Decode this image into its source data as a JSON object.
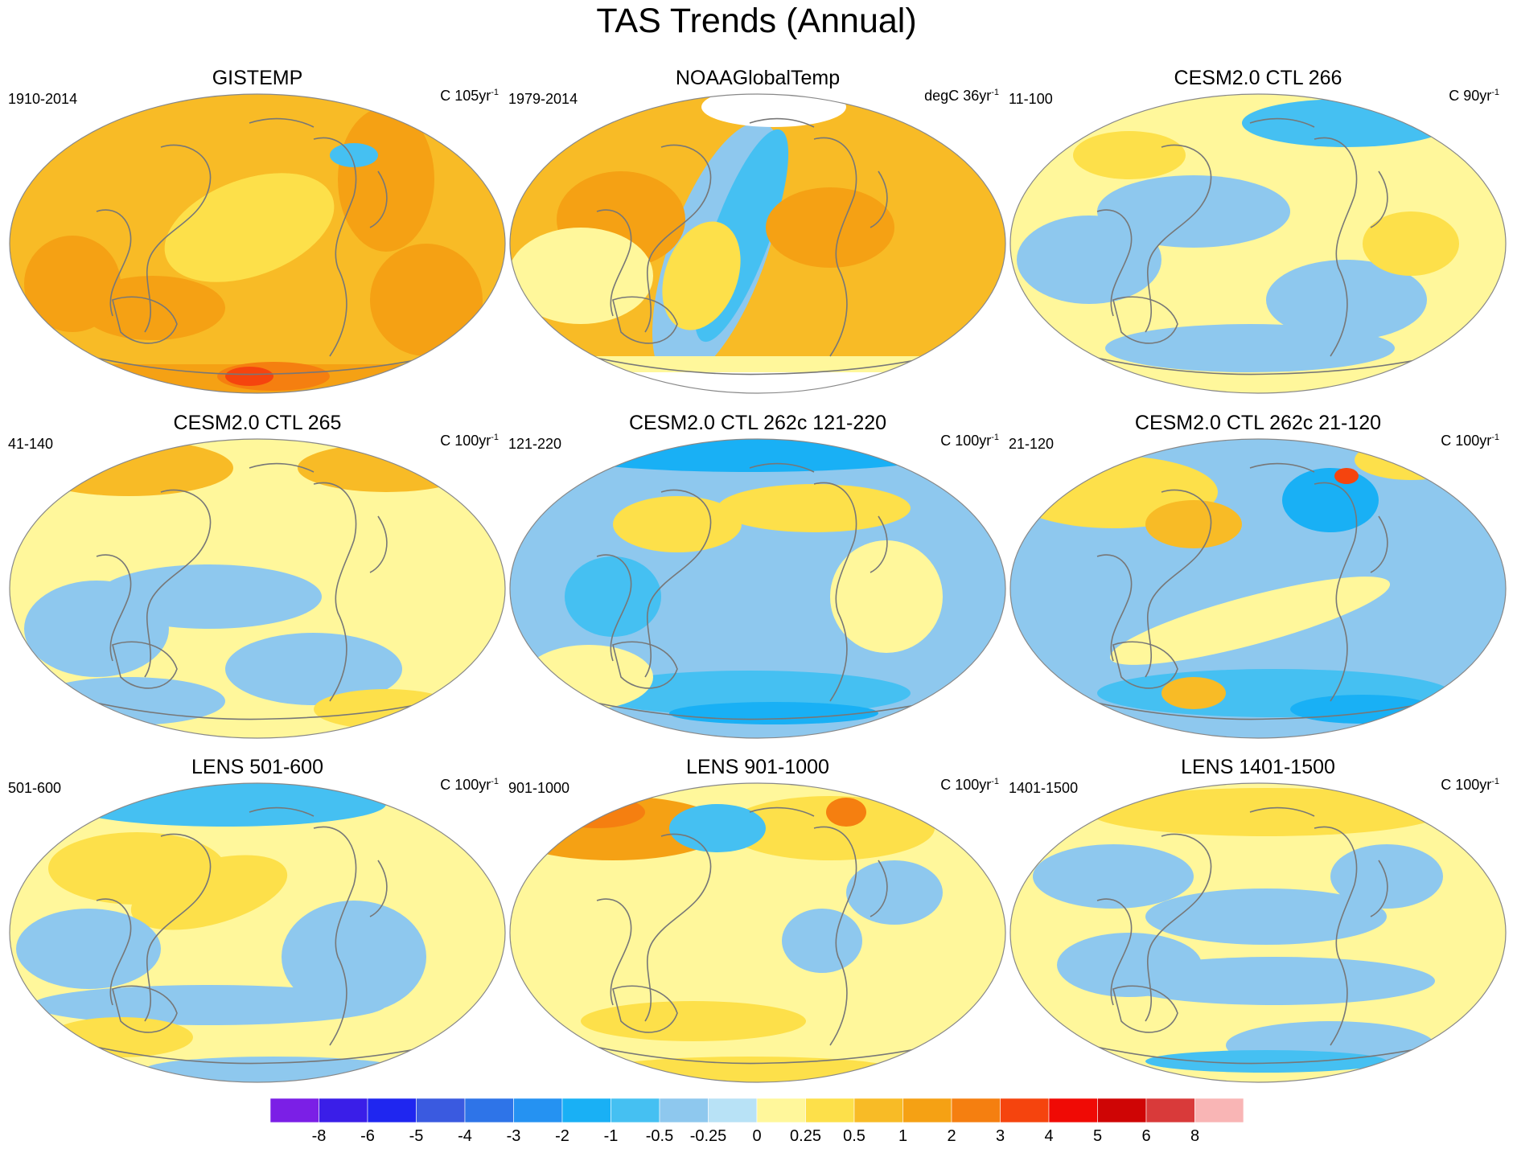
{
  "title": "TAS Trends (Annual)",
  "panels": [
    {
      "title": "GISTEMP",
      "period": "1910-2014",
      "units": "C 105yr",
      "sup": "-1",
      "pattern": "gistemp"
    },
    {
      "title": "NOAAGlobalTemp",
      "period": "1979-2014",
      "units": "degC 36yr",
      "sup": "-1",
      "pattern": "noaa"
    },
    {
      "title": "CESM2.0 CTL 266",
      "period": "11-100",
      "units": "C 90yr",
      "sup": "-1",
      "pattern": "model_a"
    },
    {
      "title": "CESM2.0 CTL 265",
      "period": "41-140",
      "units": "C 100yr",
      "sup": "-1",
      "pattern": "model_b"
    },
    {
      "title": "CESM2.0 CTL 262c 121-220",
      "period": "121-220",
      "units": "C 100yr",
      "sup": "-1",
      "pattern": "model_c"
    },
    {
      "title": "CESM2.0 CTL 262c 21-120",
      "period": "21-120",
      "units": "C 100yr",
      "sup": "-1",
      "pattern": "model_d"
    },
    {
      "title": "LENS 501-600",
      "period": "501-600",
      "units": "C 100yr",
      "sup": "-1",
      "pattern": "model_e"
    },
    {
      "title": "LENS 901-1000",
      "period": "901-1000",
      "units": "C 100yr",
      "sup": "-1",
      "pattern": "model_f"
    },
    {
      "title": "LENS 1401-1500",
      "period": "1401-1500",
      "units": "C 100yr",
      "sup": "-1",
      "pattern": "model_g"
    }
  ],
  "colorbar": {
    "labels": [
      "-8",
      "-6",
      "-5",
      "-4",
      "-3",
      "-2",
      "-1",
      "-0.5",
      "-0.25",
      "0",
      "0.25",
      "0.5",
      "1",
      "2",
      "3",
      "4",
      "5",
      "6",
      "8"
    ],
    "colors": [
      "#7b1fe6",
      "#3a1ee8",
      "#1f26f0",
      "#3a5ae0",
      "#2e74e8",
      "#2592f2",
      "#19b0f5",
      "#45c0f2",
      "#8ec8ee",
      "#b8e2f6",
      "#fff79b",
      "#fde04a",
      "#f8bb26",
      "#f5a114",
      "#f57f10",
      "#f5440e",
      "#f00a05",
      "#cf0505",
      "#d93a3a",
      "#f9b5b5"
    ]
  },
  "map_colors": {
    "land": "#ffffff",
    "coast": "#777777",
    "outline": "#888888",
    "missing": "#ffffff"
  }
}
